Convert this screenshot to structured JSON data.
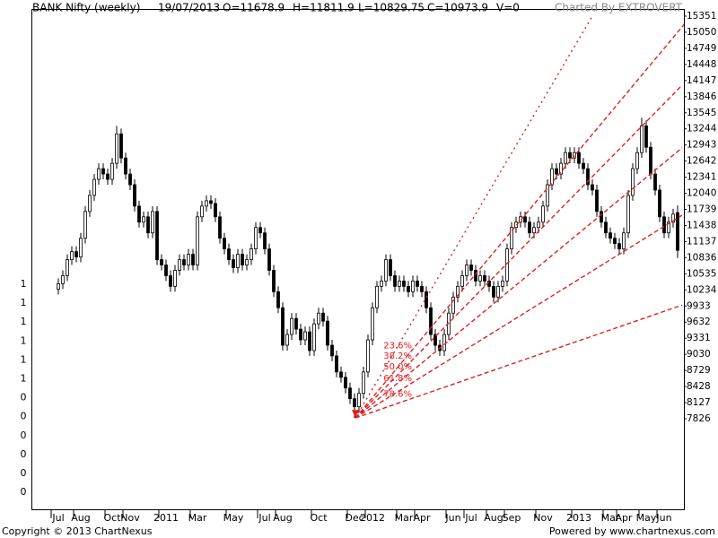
{
  "header": {
    "title": "BANK Nifty (weekly)",
    "date": "19/07/2013",
    "open": "O=11678.9",
    "high": "H=11811.9",
    "low": "L=10829.75",
    "close": "C=10973.9",
    "volume": "V=0",
    "credit": "Charted By EXTROVERT"
  },
  "footer": {
    "copyright": "Copyright © 2013 ChartNexus",
    "powered": "Powered by www.chartnexus.com"
  },
  "left_axis_labels": [
    "1",
    "1",
    "1",
    "1",
    "1",
    "1",
    "0",
    "0",
    "0",
    "0",
    "0",
    "0"
  ],
  "chart_data": {
    "type": "candlestick",
    "categories": [
      "Jul",
      null,
      null,
      null,
      null,
      "Aug",
      null,
      null,
      null,
      null,
      null,
      null,
      "Oct",
      null,
      null,
      null,
      "Nov",
      null,
      null,
      null,
      null,
      null,
      null,
      null,
      "2011",
      null,
      null,
      null,
      null,
      null,
      null,
      "Mar",
      null,
      null,
      null,
      null,
      null,
      null,
      null,
      "May",
      null,
      null,
      null,
      null,
      null,
      null,
      "Jul",
      null,
      null,
      null,
      "Aug",
      null,
      null,
      null,
      null,
      null,
      null,
      null,
      "Oct",
      null,
      null,
      null,
      null,
      null,
      null,
      null,
      "Dec",
      null,
      null,
      null,
      "2012",
      null,
      null,
      null,
      null,
      null,
      null,
      "Mar",
      null,
      null,
      null,
      "Apr",
      null,
      null,
      null,
      null,
      null,
      null,
      "Jun",
      null,
      null,
      null,
      "Jul",
      null,
      null,
      null,
      null,
      "Aug",
      null,
      null,
      null,
      "Sep",
      null,
      null,
      null,
      null,
      null,
      null,
      "Nov",
      null,
      null,
      null,
      null,
      null,
      null,
      null,
      "2013",
      null,
      null,
      null,
      null,
      null,
      null,
      "Mar",
      null,
      null,
      "Apr",
      null,
      null,
      null,
      null,
      "May",
      null,
      null,
      null,
      "Jun",
      null,
      null,
      null
    ],
    "open": [
      10250,
      10350,
      10500,
      10800,
      10950,
      10850,
      11200,
      11700,
      12000,
      12300,
      12500,
      12400,
      12300,
      12600,
      13150,
      12700,
      12400,
      12200,
      11800,
      11500,
      11600,
      11300,
      11700,
      10800,
      10700,
      10500,
      10300,
      10600,
      10800,
      10700,
      10900,
      10700,
      11600,
      11800,
      11900,
      11850,
      11600,
      11200,
      11000,
      10800,
      10650,
      10900,
      10700,
      10800,
      11000,
      11400,
      11300,
      11000,
      10600,
      10200,
      9900,
      9200,
      9400,
      9700,
      9500,
      9300,
      9450,
      9100,
      9600,
      9800,
      9650,
      9200,
      9000,
      8700,
      8600,
      8400,
      8200,
      8050,
      8300,
      8700,
      9300,
      9900,
      10300,
      10400,
      10800,
      10500,
      10300,
      10400,
      10300,
      10200,
      10400,
      10300,
      10200,
      9900,
      9400,
      9200,
      9100,
      9400,
      9800,
      10100,
      10300,
      10500,
      10700,
      10600,
      10400,
      10500,
      10400,
      10300,
      10100,
      10300,
      10400,
      11000,
      11400,
      11500,
      11600,
      11500,
      11300,
      11400,
      11500,
      11800,
      12200,
      12500,
      12400,
      12600,
      12800,
      12700,
      12800,
      12600,
      12500,
      12200,
      12100,
      11700,
      11500,
      11300,
      11200,
      11100,
      11000,
      11300,
      12000,
      12500,
      12800,
      13300,
      12900,
      12400,
      12100,
      11600,
      11300,
      11500,
      11678.9
    ],
    "high": [
      10450,
      10600,
      10900,
      11050,
      11050,
      11300,
      11800,
      12100,
      12400,
      12600,
      12600,
      12500,
      12700,
      13300,
      13250,
      12800,
      12500,
      12300,
      11900,
      11700,
      11700,
      11800,
      11800,
      10900,
      10800,
      10600,
      10700,
      10900,
      10900,
      11000,
      11000,
      11700,
      11900,
      12000,
      12000,
      11950,
      11700,
      11300,
      11100,
      10900,
      11000,
      11000,
      10900,
      11100,
      11500,
      11500,
      11400,
      11100,
      10700,
      10300,
      10000,
      9500,
      9800,
      9800,
      9600,
      9550,
      9550,
      9700,
      9900,
      9900,
      9750,
      9300,
      9100,
      8800,
      8700,
      8500,
      8300,
      8400,
      8800,
      9400,
      10000,
      10400,
      10500,
      10900,
      10900,
      10600,
      10500,
      10500,
      10400,
      10500,
      10500,
      10400,
      10300,
      10000,
      9500,
      9300,
      9500,
      9900,
      10200,
      10400,
      10600,
      10800,
      10800,
      10700,
      10600,
      10600,
      10500,
      10400,
      10400,
      10500,
      11100,
      11500,
      11600,
      11700,
      11700,
      11600,
      11500,
      11600,
      11900,
      12300,
      12600,
      12600,
      12700,
      12900,
      12900,
      12900,
      12900,
      12700,
      12600,
      12300,
      12200,
      11800,
      11600,
      11400,
      11300,
      11200,
      11400,
      12100,
      12600,
      12900,
      13450,
      13400,
      13000,
      12500,
      12200,
      11700,
      11600,
      11750,
      11811.9
    ],
    "low": [
      10150,
      10250,
      10400,
      10700,
      10750,
      10750,
      11100,
      11600,
      11900,
      12200,
      12300,
      12200,
      12200,
      12500,
      12600,
      12300,
      12100,
      11700,
      11400,
      11400,
      11200,
      11200,
      10700,
      10600,
      10400,
      10200,
      10200,
      10500,
      10600,
      10600,
      10600,
      10600,
      11500,
      11700,
      11750,
      11500,
      11100,
      10900,
      10700,
      10550,
      10550,
      10600,
      10600,
      10700,
      10900,
      11200,
      10900,
      10500,
      10100,
      9800,
      9100,
      9100,
      9300,
      9400,
      9200,
      9200,
      9000,
      9000,
      9500,
      9550,
      9100,
      8900,
      8600,
      8500,
      8300,
      8100,
      7840,
      7950,
      8200,
      8600,
      9200,
      9800,
      10200,
      10300,
      10400,
      10200,
      10200,
      10200,
      10100,
      10100,
      10200,
      10100,
      9800,
      9300,
      9100,
      9000,
      9000,
      9300,
      9700,
      10000,
      10200,
      10400,
      10500,
      10300,
      10300,
      10300,
      10200,
      10000,
      10000,
      10200,
      10300,
      10900,
      11300,
      11400,
      11400,
      11200,
      11200,
      11300,
      11400,
      11700,
      12100,
      12300,
      12300,
      12500,
      12600,
      12600,
      12500,
      12400,
      12100,
      12000,
      11600,
      11400,
      11200,
      11100,
      11000,
      10900,
      10900,
      11200,
      11900,
      12400,
      12700,
      12800,
      12300,
      12000,
      11500,
      11200,
      11200,
      11400,
      10829.75
    ],
    "close": [
      10350,
      10500,
      10800,
      10950,
      10850,
      11200,
      11700,
      12000,
      12300,
      12500,
      12400,
      12300,
      12600,
      13150,
      12700,
      12400,
      12200,
      11800,
      11500,
      11600,
      11300,
      11700,
      10800,
      10700,
      10500,
      10300,
      10600,
      10800,
      10700,
      10900,
      10700,
      11600,
      11800,
      11900,
      11850,
      11600,
      11200,
      11000,
      10800,
      10650,
      10900,
      10700,
      10800,
      11000,
      11400,
      11300,
      11000,
      10600,
      10200,
      9900,
      9200,
      9400,
      9700,
      9500,
      9300,
      9450,
      9100,
      9600,
      9800,
      9650,
      9200,
      9000,
      8700,
      8600,
      8400,
      8200,
      8050,
      8300,
      8700,
      9300,
      9900,
      10300,
      10400,
      10800,
      10500,
      10300,
      10400,
      10300,
      10200,
      10400,
      10300,
      10200,
      9900,
      9400,
      9200,
      9100,
      9400,
      9800,
      10100,
      10300,
      10500,
      10700,
      10600,
      10400,
      10500,
      10400,
      10300,
      10100,
      10300,
      10400,
      11000,
      11400,
      11500,
      11600,
      11500,
      11300,
      11400,
      11500,
      11800,
      12200,
      12500,
      12400,
      12600,
      12800,
      12700,
      12800,
      12600,
      12500,
      12200,
      12100,
      11700,
      11500,
      11300,
      11200,
      11100,
      11000,
      11300,
      12000,
      12500,
      12800,
      13300,
      12900,
      12400,
      12100,
      11600,
      11300,
      11500,
      11650,
      10973.9
    ],
    "up_color": "#ffffff",
    "down_color": "#000000",
    "outline_color": "#000000",
    "ylim": [
      6133,
      15485
    ],
    "yticks": [
      7826,
      8127,
      8428,
      8729,
      9030,
      9331,
      9632,
      9933,
      10234,
      10535,
      10836,
      11137,
      11438,
      11739,
      12040,
      12341,
      12642,
      12943,
      13244,
      13545,
      13846,
      14147,
      14448,
      14749,
      15050,
      15351
    ],
    "fan": {
      "color": "#e02020",
      "anchor": [
        66.2,
        7840
      ],
      "lines": [
        {
          "end": [
            119,
            15351
          ],
          "style": "dotted"
        },
        {
          "label": "23.6%",
          "end": [
            141,
            15351
          ],
          "style": "dashed"
        },
        {
          "label": "38.2%",
          "end": [
            139,
            14060
          ],
          "style": "dashed"
        },
        {
          "label": "50.0%",
          "end": [
            139,
            12890
          ],
          "style": "dashed"
        },
        {
          "label": "61.8%",
          "end": [
            139,
            11630
          ],
          "style": "dashed"
        },
        {
          "label": "78.6%",
          "end": [
            139,
            9950
          ],
          "style": "dashed"
        }
      ]
    }
  }
}
